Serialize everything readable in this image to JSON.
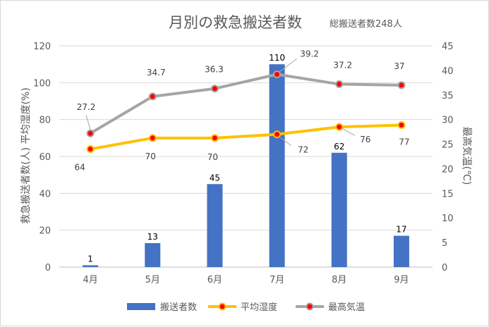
{
  "chart_data": {
    "type": "bar",
    "title": "月別の救急搬送者数",
    "subtitle": "総搬送者数248人",
    "categories": [
      "4月",
      "5月",
      "6月",
      "7月",
      "8月",
      "9月"
    ],
    "series": [
      {
        "name": "搬送者数",
        "type": "bar",
        "axis": "left",
        "color": "#4472c4",
        "values": [
          1,
          13,
          45,
          110,
          62,
          17
        ]
      },
      {
        "name": "平均湿度",
        "type": "line",
        "axis": "left",
        "color": "#ffc000",
        "marker_color": "#ff0000",
        "values": [
          64,
          70,
          70,
          72,
          76,
          77
        ]
      },
      {
        "name": "最高気温",
        "type": "line",
        "axis": "right",
        "color": "#a5a5a5",
        "marker_color": "#ff0000",
        "values": [
          27.2,
          34.7,
          36.3,
          39.2,
          37.2,
          37
        ]
      }
    ],
    "ylabel": "救急搬送者数(人)  平均湿度(%)",
    "y2label": "最高気温(℃)",
    "ylim": [
      0,
      120
    ],
    "yticks": [
      0,
      20,
      40,
      60,
      80,
      100,
      120
    ],
    "y2lim": [
      0,
      45
    ],
    "y2ticks": [
      0,
      5,
      10,
      15,
      20,
      25,
      30,
      35,
      40,
      45
    ],
    "grid": true,
    "legend": "bottom"
  }
}
